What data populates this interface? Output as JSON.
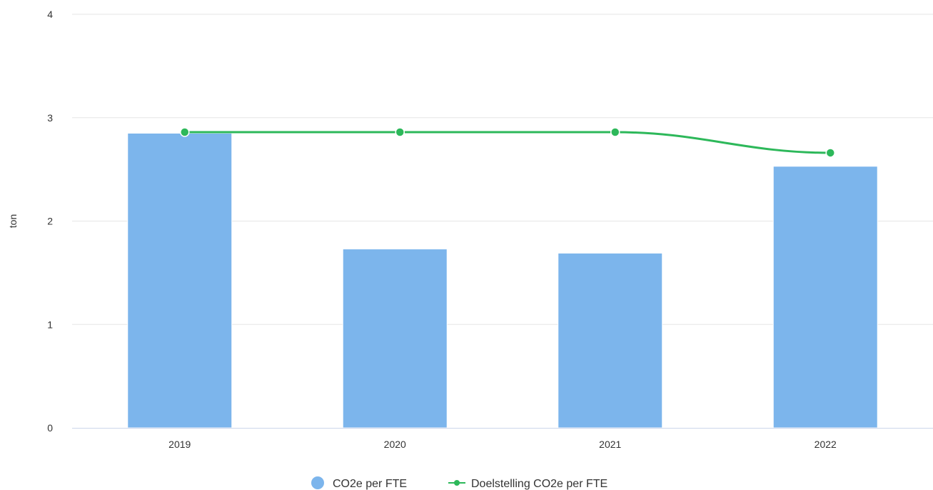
{
  "chart_data": {
    "type": "bar",
    "categories": [
      "2019",
      "2020",
      "2021",
      "2022"
    ],
    "series": [
      {
        "name": "CO2e per FTE",
        "type": "bar",
        "values": [
          2.85,
          1.73,
          1.69,
          2.53
        ],
        "color": "#7cb5ec"
      },
      {
        "name": "Doelstelling CO2e per FTE",
        "type": "line",
        "values": [
          2.86,
          2.86,
          2.86,
          2.66
        ],
        "color": "#2db85a"
      }
    ],
    "title": "",
    "xlabel": "",
    "ylabel": "ton",
    "ylim": [
      0,
      4
    ],
    "yticks": [
      "0",
      "1",
      "2",
      "3",
      "4"
    ],
    "grid": true,
    "legend_position": "bottom-center"
  }
}
